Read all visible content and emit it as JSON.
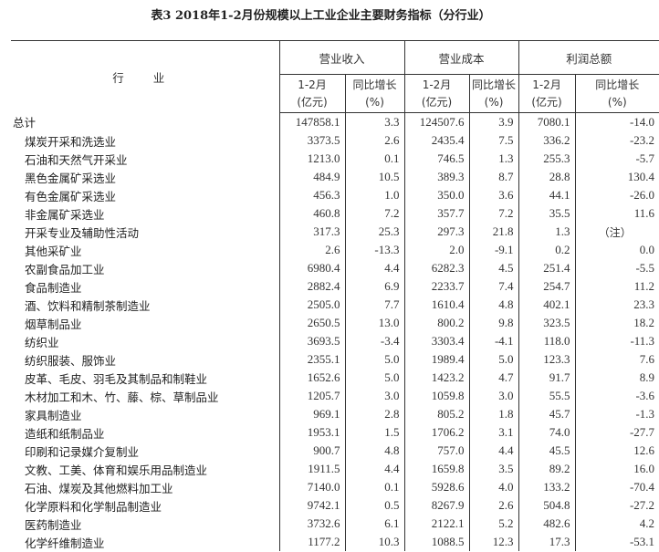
{
  "title": "表3 2018年1-2月份规模以上工业企业主要财务指标（分行业）",
  "header": {
    "industry": "行 业",
    "groups": [
      "营业收入",
      "营业成本",
      "利润总额"
    ],
    "sub_value": [
      "1-2月",
      "(亿元)"
    ],
    "sub_growth": [
      "同比增长",
      "(%)"
    ]
  },
  "rows": [
    {
      "name": "总计",
      "v": [
        "147858.1",
        "3.3",
        "124507.6",
        "3.9",
        "7080.1",
        "-14.0"
      ]
    },
    {
      "name": "煤炭开采和洗选业",
      "v": [
        "3373.5",
        "2.6",
        "2435.4",
        "7.5",
        "336.2",
        "-23.2"
      ]
    },
    {
      "name": "石油和天然气开采业",
      "v": [
        "1213.0",
        "0.1",
        "746.5",
        "1.3",
        "255.3",
        "-5.7"
      ]
    },
    {
      "name": "黑色金属矿采选业",
      "v": [
        "484.9",
        "10.5",
        "389.3",
        "8.7",
        "28.8",
        "130.4"
      ]
    },
    {
      "name": "有色金属矿采选业",
      "v": [
        "456.3",
        "1.0",
        "350.0",
        "3.6",
        "44.1",
        "-26.0"
      ]
    },
    {
      "name": "非金属矿采选业",
      "v": [
        "460.8",
        "7.2",
        "357.7",
        "7.2",
        "35.5",
        "11.6"
      ]
    },
    {
      "name": "开采专业及辅助性活动",
      "v": [
        "317.3",
        "25.3",
        "297.3",
        "21.8",
        "1.3",
        "（注）"
      ]
    },
    {
      "name": "其他采矿业",
      "v": [
        "2.6",
        "-13.3",
        "2.0",
        "-9.1",
        "0.2",
        "0.0"
      ]
    },
    {
      "name": "农副食品加工业",
      "v": [
        "6980.4",
        "4.4",
        "6282.3",
        "4.5",
        "251.4",
        "-5.5"
      ]
    },
    {
      "name": "食品制造业",
      "v": [
        "2882.4",
        "6.9",
        "2233.7",
        "7.4",
        "254.7",
        "11.2"
      ]
    },
    {
      "name": "酒、饮料和精制茶制造业",
      "v": [
        "2505.0",
        "7.7",
        "1610.4",
        "4.8",
        "402.1",
        "23.3"
      ]
    },
    {
      "name": "烟草制品业",
      "v": [
        "2650.5",
        "13.0",
        "800.2",
        "9.8",
        "323.5",
        "18.2"
      ]
    },
    {
      "name": "纺织业",
      "v": [
        "3693.5",
        "-3.4",
        "3303.4",
        "-4.1",
        "118.0",
        "-11.3"
      ]
    },
    {
      "name": "纺织服装、服饰业",
      "v": [
        "2355.1",
        "5.0",
        "1989.4",
        "5.0",
        "123.3",
        "7.6"
      ]
    },
    {
      "name": "皮革、毛皮、羽毛及其制品和制鞋业",
      "v": [
        "1652.6",
        "5.0",
        "1423.2",
        "4.7",
        "91.7",
        "8.9"
      ]
    },
    {
      "name": "木材加工和木、竹、藤、棕、草制品业",
      "v": [
        "1205.7",
        "3.0",
        "1059.8",
        "3.0",
        "55.5",
        "-3.6"
      ]
    },
    {
      "name": "家具制造业",
      "v": [
        "969.1",
        "2.8",
        "805.2",
        "1.8",
        "45.7",
        "-1.3"
      ]
    },
    {
      "name": "造纸和纸制品业",
      "v": [
        "1953.1",
        "1.5",
        "1706.2",
        "3.1",
        "74.0",
        "-27.7"
      ]
    },
    {
      "name": "印刷和记录媒介复制业",
      "v": [
        "900.7",
        "4.8",
        "757.0",
        "4.4",
        "45.5",
        "12.6"
      ]
    },
    {
      "name": "文教、工美、体育和娱乐用品制造业",
      "v": [
        "1911.5",
        "4.4",
        "1659.8",
        "3.5",
        "89.2",
        "16.0"
      ]
    },
    {
      "name": "石油、煤炭及其他燃料加工业",
      "v": [
        "7140.0",
        "0.1",
        "5928.6",
        "4.0",
        "133.2",
        "-70.4"
      ]
    },
    {
      "name": "化学原料和化学制品制造业",
      "v": [
        "9742.1",
        "0.5",
        "8267.9",
        "2.6",
        "504.8",
        "-27.2"
      ]
    },
    {
      "name": "医药制造业",
      "v": [
        "3732.6",
        "6.1",
        "2122.1",
        "5.2",
        "482.6",
        "4.2"
      ]
    },
    {
      "name": "化学纤维制造业",
      "v": [
        "1177.2",
        "10.3",
        "1088.5",
        "12.3",
        "17.3",
        "-53.1"
      ]
    }
  ]
}
